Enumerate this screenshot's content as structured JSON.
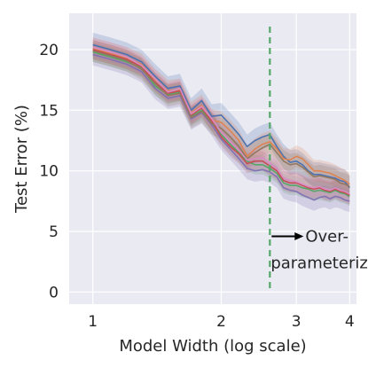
{
  "chart_data": {
    "type": "line",
    "xlabel": "Model Width (log scale)",
    "ylabel": "Test Error (%)",
    "xlim": [
      0.88,
      4.15
    ],
    "ylim": [
      -1.0,
      23.0
    ],
    "grid": true,
    "x_ticks": [
      1,
      2,
      3,
      4
    ],
    "x_tick_labels": [
      "1",
      "2",
      "3",
      "4"
    ],
    "y_ticks": [
      0,
      5,
      10,
      15,
      20
    ],
    "y_tick_labels": [
      "0",
      "5",
      "10",
      "15",
      "20"
    ],
    "vline": {
      "x": 2.6
    },
    "annotation": {
      "line1": "Over-",
      "line2": "parameterized"
    },
    "x": [
      1.0,
      1.1,
      1.2,
      1.3,
      1.4,
      1.5,
      1.6,
      1.7,
      1.8,
      1.9,
      2.0,
      2.1,
      2.2,
      2.3,
      2.4,
      2.5,
      2.6,
      2.7,
      2.8,
      2.9,
      3.0,
      3.1,
      3.2,
      3.3,
      3.4,
      3.5,
      3.6,
      3.7,
      3.8,
      3.9,
      4.0
    ],
    "series": [
      {
        "color": "#4c72b0",
        "band": 1.0,
        "values": [
          20.4,
          20.0,
          19.6,
          19.0,
          17.8,
          16.8,
          17.0,
          15.0,
          15.8,
          14.5,
          14.6,
          13.8,
          13.0,
          12.0,
          12.5,
          12.8,
          13.0,
          12.0,
          11.2,
          10.7,
          10.8,
          10.5,
          10.0,
          9.7,
          9.7,
          9.6,
          9.5,
          9.4,
          9.2,
          9.1,
          8.6
        ]
      },
      {
        "color": "#dd8452",
        "band": 0.9,
        "values": [
          20.1,
          19.7,
          19.3,
          18.8,
          17.5,
          16.6,
          16.7,
          14.8,
          15.4,
          14.2,
          14.0,
          13.3,
          12.5,
          11.2,
          11.8,
          12.2,
          12.4,
          11.8,
          11.0,
          10.9,
          11.2,
          11.0,
          10.5,
          10.0,
          10.0,
          9.9,
          9.8,
          9.6,
          9.4,
          9.2,
          8.9
        ]
      },
      {
        "color": "#55a868",
        "band": 0.8,
        "values": [
          19.8,
          19.4,
          19.0,
          18.5,
          17.0,
          16.3,
          16.5,
          14.5,
          15.0,
          14.0,
          13.0,
          12.2,
          11.5,
          10.8,
          10.5,
          10.5,
          10.2,
          9.8,
          9.0,
          8.8,
          8.8,
          8.6,
          8.5,
          8.3,
          8.4,
          8.3,
          8.2,
          8.4,
          8.2,
          8.1,
          7.9
        ]
      },
      {
        "color": "#c44e52",
        "band": 0.8,
        "values": [
          20.0,
          19.6,
          19.2,
          18.6,
          17.3,
          16.4,
          16.6,
          14.6,
          15.2,
          14.1,
          12.8,
          12.0,
          11.4,
          10.6,
          10.8,
          10.8,
          10.4,
          10.0,
          9.2,
          9.0,
          9.0,
          8.8,
          8.6,
          8.5,
          8.6,
          8.4,
          8.3,
          8.5,
          8.3,
          8.2,
          8.0
        ]
      },
      {
        "color": "#8172b3",
        "band": 0.9,
        "values": [
          19.6,
          19.2,
          18.8,
          18.2,
          16.8,
          16.0,
          16.2,
          14.3,
          14.8,
          13.8,
          12.6,
          11.8,
          11.0,
          10.2,
          10.0,
          10.1,
          9.9,
          9.5,
          8.6,
          8.4,
          8.3,
          8.0,
          7.8,
          7.6,
          7.8,
          7.9,
          7.7,
          7.9,
          7.8,
          7.6,
          7.5
        ]
      },
      {
        "color": "#937860",
        "band": 0.9,
        "values": [
          19.9,
          19.5,
          19.1,
          18.4,
          17.2,
          16.2,
          16.4,
          14.4,
          14.9,
          13.9,
          13.5,
          12.8,
          12.0,
          11.0,
          11.5,
          11.9,
          12.2,
          11.5,
          10.8,
          10.5,
          10.6,
          10.3,
          9.9,
          9.5,
          9.6,
          9.5,
          9.4,
          9.3,
          9.0,
          8.9,
          8.7
        ]
      },
      {
        "color": "#da8bc3",
        "band": 0.8,
        "values": [
          20.2,
          19.8,
          19.4,
          18.7,
          17.6,
          16.5,
          16.8,
          14.7,
          15.3,
          14.3,
          13.2,
          12.4,
          11.7,
          10.9,
          11.0,
          11.1,
          10.6,
          10.2,
          9.4,
          9.2,
          9.1,
          8.9,
          8.7,
          8.6,
          8.7,
          8.5,
          8.4,
          8.6,
          8.4,
          8.3,
          8.1
        ]
      }
    ]
  }
}
